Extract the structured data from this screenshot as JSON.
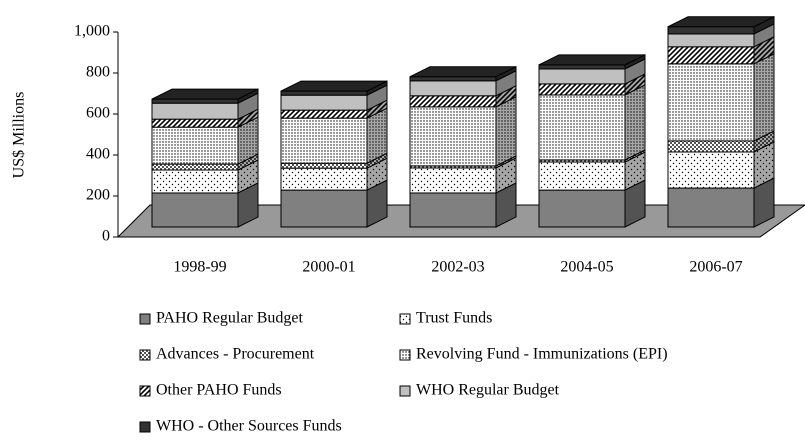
{
  "chart_data": {
    "type": "bar3d-stacked",
    "y_label": "US$ Millions",
    "categories": [
      "1998-99",
      "2000-01",
      "2002-03",
      "2004-05",
      "2006-07"
    ],
    "ylim": [
      0,
      1000
    ],
    "yticks": [
      0,
      200,
      400,
      600,
      800,
      {
        "value": 1000,
        "label": "1,000"
      }
    ],
    "series": [
      {
        "name": "PAHO Regular Budget",
        "color": "#808080",
        "pattern": "solid",
        "values": [
          166,
          180,
          166,
          180,
          190
        ]
      },
      {
        "name": "Trust Funds",
        "color": "#ffffff",
        "pattern": "sparse-dots",
        "values": [
          112,
          107,
          122,
          137,
          176
        ]
      },
      {
        "name": "Advances - Procurement",
        "color": "#ffffff",
        "pattern": "checks",
        "values": [
          29,
          24,
          10,
          10,
          54
        ]
      },
      {
        "name": "Revolving Fund - Immunizations (EPI)",
        "color": "#ffffff",
        "pattern": "dense-dots",
        "values": [
          180,
          220,
          288,
          317,
          376
        ]
      },
      {
        "name": "Other PAHO Funds",
        "color": "#ffffff",
        "pattern": "hatch",
        "values": [
          39,
          39,
          54,
          54,
          83
        ]
      },
      {
        "name": "WHO Regular Budget",
        "color": "#c0c0c0",
        "pattern": "solid",
        "values": [
          78,
          73,
          73,
          73,
          63
        ]
      },
      {
        "name": "WHO - Other Sources Funds",
        "color": "#333333",
        "pattern": "solid",
        "values": [
          20,
          20,
          20,
          20,
          35
        ]
      }
    ]
  }
}
